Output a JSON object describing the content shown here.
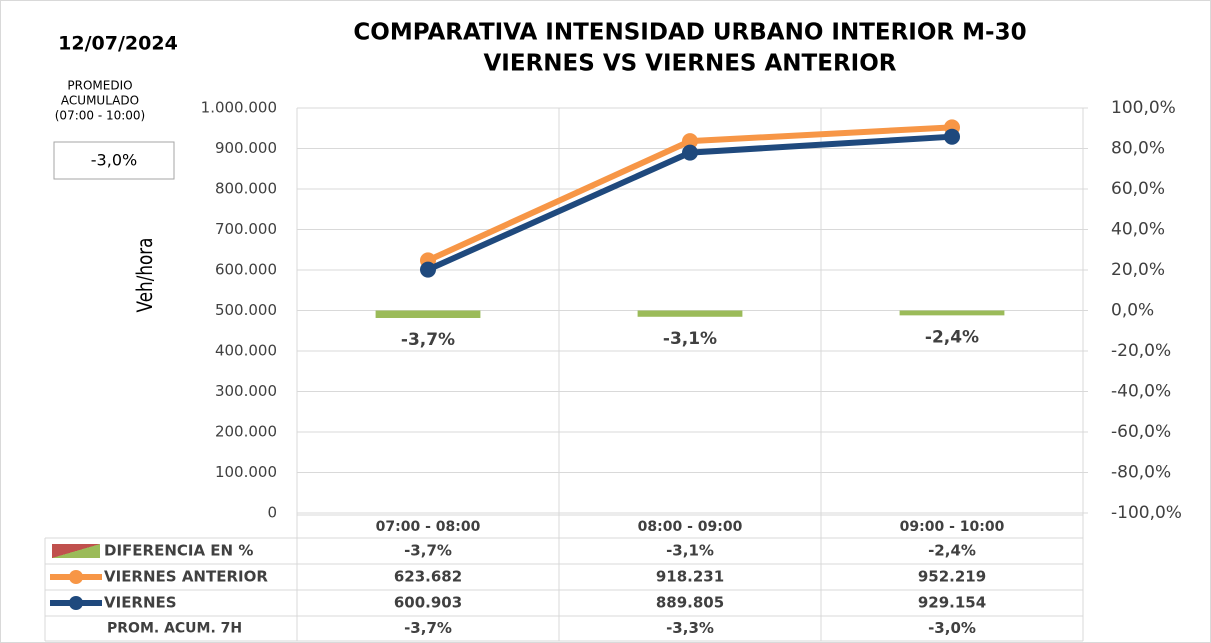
{
  "chart_data": {
    "type": "combo",
    "date": "12/07/2024",
    "title": "COMPARATIVA INTENSIDAD URBANO INTERIOR M-30",
    "subtitle": "VIERNES VS VIERNES ANTERIOR",
    "average_caption": [
      "PROMEDIO",
      "ACUMULADO",
      "(07:00 - 10:00)"
    ],
    "average_box": {
      "value": -3.0,
      "label": "-3,0%"
    },
    "y_label": "Veh/hora",
    "categories": [
      "07:00 - 08:00",
      "08:00 - 09:00",
      "09:00 - 10:00"
    ],
    "series": [
      {
        "name": "DIFERENCIA EN %",
        "kind": "bar",
        "axis": "y2",
        "color": "#9bbb59",
        "values": [
          -3.7,
          -3.1,
          -2.4
        ],
        "value_labels": [
          "-3,7%",
          "-3,1%",
          "-2,4%"
        ]
      },
      {
        "name": "VIERNES ANTERIOR",
        "kind": "line",
        "color": "#f79646",
        "values": [
          623682,
          918231,
          952219
        ],
        "value_labels": [
          "623.682",
          "918.231",
          "952.219"
        ]
      },
      {
        "name": "VIERNES",
        "kind": "line",
        "color": "#1f497d",
        "values": [
          600903,
          889805,
          929154
        ],
        "value_labels": [
          "600.903",
          "889.805",
          "929.154"
        ]
      }
    ],
    "extra_row": {
      "name": "PROM. ACUM. 7H",
      "values": [
        -3.7,
        -3.3,
        -3.0
      ],
      "value_labels": [
        "-3,7%",
        "-3,3%",
        "-3,0%"
      ]
    },
    "ylim": [
      0,
      1000000
    ],
    "yticks": [
      0,
      {
        "value": 100000,
        "label": "100.000"
      },
      {
        "value": 200000,
        "label": "200.000"
      },
      {
        "value": 300000,
        "label": "300.000"
      },
      {
        "value": 400000,
        "label": "400.000"
      },
      {
        "value": 500000,
        "label": "500.000"
      },
      {
        "value": 600000,
        "label": "600.000"
      },
      {
        "value": 700000,
        "label": "700.000"
      },
      {
        "value": 800000,
        "label": "800.000"
      },
      {
        "value": 900000,
        "label": "900.000"
      },
      {
        "value": 1000000,
        "label": "1.000.000"
      }
    ],
    "y2lim": [
      -100,
      100
    ],
    "y2ticks": [
      {
        "value": -100,
        "label": "-100,0%"
      },
      {
        "value": -80,
        "label": "-80,0%"
      },
      {
        "value": -60,
        "label": "-60,0%"
      },
      {
        "value": -40,
        "label": "-40,0%"
      },
      {
        "value": -20,
        "label": "-20,0%"
      },
      {
        "value": 0,
        "label": "0,0%"
      },
      {
        "value": 20,
        "label": "20,0%"
      },
      {
        "value": 40,
        "label": "40,0%"
      },
      {
        "value": 60,
        "label": "60,0%"
      },
      {
        "value": 80,
        "label": "80,0%"
      },
      {
        "value": 100,
        "label": "100,0%"
      }
    ],
    "grid": true
  }
}
